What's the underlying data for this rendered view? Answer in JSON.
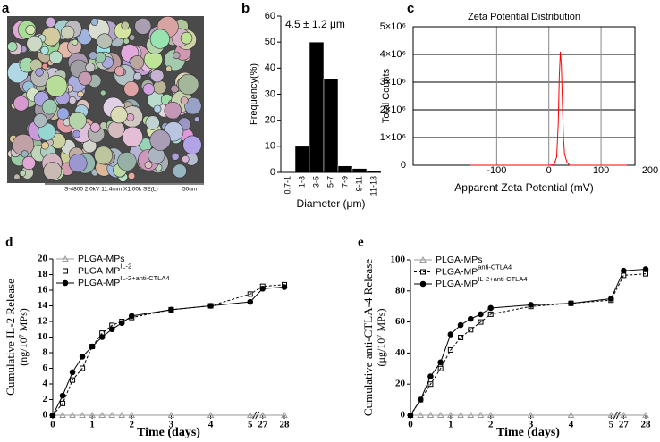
{
  "panel_labels": [
    "a",
    "b",
    "c",
    "d",
    "e"
  ],
  "sem_image": {
    "caption": "S-4800 2.0kV 11.4mm X1.00k SE(L)",
    "scale_bar": "50um"
  },
  "chart_data": [
    {
      "type": "bar",
      "annotation": "4.5 ± 1.2 μm",
      "x_label": "Diameter (μm)",
      "y_label": "Frequency(%)",
      "categories": [
        "0.7-1",
        "1-3",
        "3-5",
        "5-7",
        "7-9",
        "9-11",
        "11-13"
      ],
      "values": [
        0,
        10,
        50,
        36,
        2.5,
        1.5,
        0.5
      ],
      "color": "#000000",
      "ylim": [
        0,
        60
      ],
      "yticks": [
        0,
        10,
        20,
        30,
        40,
        50,
        60
      ]
    },
    {
      "type": "line",
      "title": "Zeta Potential Distribution",
      "x_label": "Apparent Zeta Potential (mV)",
      "y_label": "Total Counts",
      "x": [
        -150,
        -100,
        -50,
        0,
        10,
        15,
        18,
        20,
        22,
        24,
        26,
        28,
        30,
        35,
        40,
        60,
        100,
        150
      ],
      "values": [
        0,
        0,
        0,
        0,
        20000,
        300000,
        1500000,
        3200000,
        4100000,
        3600000,
        2200000,
        1000000,
        400000,
        100000,
        0,
        0,
        0,
        0
      ],
      "color": "#ff0000",
      "xlim": [
        -260,
        165
      ],
      "xticks": [
        -100,
        0,
        100,
        200
      ],
      "ylim": [
        0,
        5000000
      ],
      "yticks": [
        0,
        {
          "value": 1000000,
          "label": "1×10⁶"
        },
        {
          "value": 2000000,
          "label": "2×10⁶"
        },
        {
          "value": 3000000,
          "label": "3×10⁶"
        },
        {
          "value": 4000000,
          "label": "4×10⁶"
        },
        {
          "value": 5000000,
          "label": "5×10⁶"
        }
      ],
      "grid": true
    },
    {
      "type": "line",
      "x_label": "Time (days)",
      "y_label": "Cumulative IL-2 Release",
      "y_label_unit": "(ng/10⁷ MPs)",
      "x": [
        0,
        0.25,
        0.5,
        0.75,
        1,
        1.25,
        1.5,
        1.75,
        2,
        3,
        4,
        5,
        27,
        28
      ],
      "xticks": [
        0,
        1,
        2,
        3,
        4,
        5,
        27,
        28
      ],
      "ylim": [
        0,
        20
      ],
      "yticks": [
        0,
        2,
        4,
        6,
        8,
        10,
        12,
        14,
        16,
        18,
        20
      ],
      "series": [
        {
          "name": "PLGA-MPs",
          "marker": "triangle",
          "marker_fill": "none",
          "color": "#999999",
          "dash": false,
          "values": [
            0,
            0,
            0,
            0,
            0,
            0,
            0,
            0,
            0,
            0,
            0,
            0,
            0,
            0
          ]
        },
        {
          "name": "PLGA-MP",
          "name_sup": "IL-2",
          "marker": "square",
          "marker_fill": "none",
          "color": "#000000",
          "dash": true,
          "values": [
            0,
            1.5,
            4.5,
            6,
            8.8,
            10.5,
            11.5,
            12,
            12.5,
            13.5,
            14,
            15.5,
            16.5,
            16.7
          ]
        },
        {
          "name": "PLGA-MP",
          "name_sup": "IL-2+anti-CTLA4",
          "marker": "circle",
          "marker_fill": "#000000",
          "color": "#000000",
          "dash": false,
          "values": [
            0,
            2.5,
            5.5,
            7.5,
            8.8,
            10,
            11,
            11.8,
            12.7,
            13.5,
            14,
            14.5,
            16.2,
            16.4
          ]
        }
      ]
    },
    {
      "type": "line",
      "x_label": "Time (days)",
      "y_label": "Cumulative anti-CTLA-4 Release",
      "y_label_unit": "(μg/10⁷ MPs)",
      "x": [
        0,
        0.25,
        0.5,
        0.75,
        1,
        1.25,
        1.5,
        1.75,
        2,
        3,
        4,
        5,
        27,
        28
      ],
      "xticks": [
        0,
        1,
        2,
        3,
        4,
        5,
        27,
        28
      ],
      "ylim": [
        0,
        100
      ],
      "yticks": [
        0,
        20,
        40,
        60,
        80,
        100
      ],
      "series": [
        {
          "name": "PLGA-MPs",
          "marker": "triangle",
          "marker_fill": "none",
          "color": "#999999",
          "dash": false,
          "values": [
            0,
            0,
            0,
            0,
            0,
            0,
            0,
            0,
            0,
            0,
            0,
            0,
            0,
            0
          ]
        },
        {
          "name": "PLGA-MP",
          "name_sup": "anti-CTLA4",
          "marker": "square",
          "marker_fill": "none",
          "color": "#000000",
          "dash": true,
          "values": [
            0,
            10,
            20,
            30,
            42,
            50,
            55,
            60,
            65,
            70,
            72,
            74,
            90,
            91
          ]
        },
        {
          "name": "PLGA-MP",
          "name_sup": "IL-2+anti-CTLA4",
          "marker": "circle",
          "marker_fill": "#000000",
          "color": "#000000",
          "dash": false,
          "values": [
            0,
            10,
            25,
            34,
            52,
            58,
            62,
            65,
            69,
            71,
            72,
            75,
            93,
            94
          ]
        }
      ]
    }
  ]
}
